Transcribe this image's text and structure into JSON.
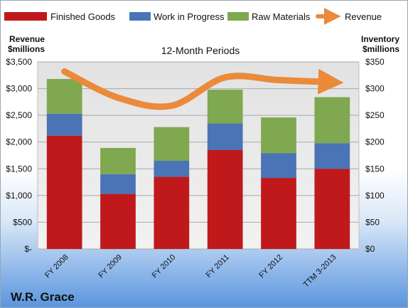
{
  "chart_data": {
    "type": "bar",
    "stacked": true,
    "subtitle": "12-Month Periods",
    "company": "W.R. Grace",
    "categories": [
      "FY 2008",
      "FY 2009",
      "FY 2010",
      "FY 2011",
      "FY 2012",
      "TTM 3-2013"
    ],
    "y_left": {
      "title_line1": "Revenue",
      "title_line2": "$millions",
      "range": [
        0,
        3500
      ],
      "ticks": [
        0,
        500,
        1000,
        1500,
        2000,
        2500,
        3000,
        3500
      ],
      "tick_labels": [
        "$-",
        "$500",
        "$1,000",
        "$1,500",
        "$2,000",
        "$2,500",
        "$3,000",
        "$3,500"
      ]
    },
    "y_right": {
      "title_line1": "Inventory",
      "title_line2": "$millions",
      "range": [
        0,
        350
      ],
      "ticks": [
        0,
        50,
        100,
        150,
        200,
        250,
        300,
        350
      ],
      "tick_labels": [
        "$0",
        "$50",
        "$100",
        "$150",
        "$200",
        "$250",
        "$300",
        "$350"
      ]
    },
    "series": [
      {
        "name": "Finished Goods",
        "axis": "right",
        "color": "#c0191c",
        "values": [
          212,
          103,
          135,
          185,
          133,
          150
        ]
      },
      {
        "name": "Work in Progress",
        "axis": "right",
        "color": "#4a74b5",
        "values": [
          41,
          37,
          30,
          50,
          46,
          48
        ]
      },
      {
        "name": "Raw Materials",
        "axis": "right",
        "color": "#7fa850",
        "values": [
          65,
          49,
          63,
          63,
          67,
          86
        ]
      }
    ],
    "line_series": {
      "name": "Revenue",
      "axis": "left",
      "color": "#ea8a3a",
      "values": [
        3320,
        2830,
        2680,
        3210,
        3160,
        3120
      ]
    },
    "grid": true,
    "legend_position": "top"
  }
}
